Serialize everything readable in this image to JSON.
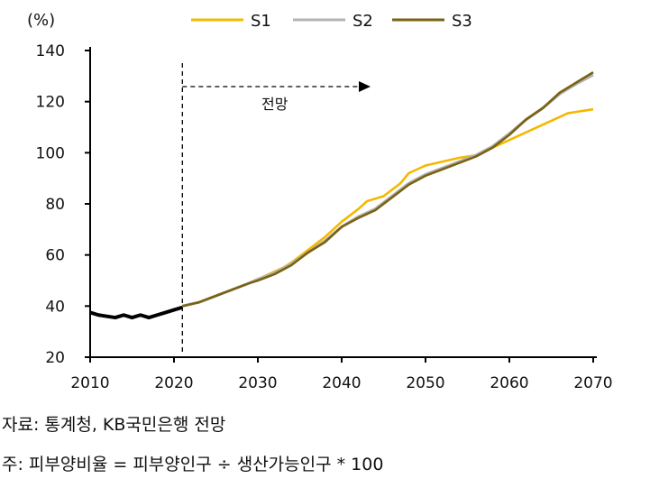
{
  "chart_data": {
    "type": "line",
    "ylabel": "(%)",
    "ylim": [
      20,
      140
    ],
    "xlim": [
      2010,
      2070
    ],
    "yticks": [
      20,
      40,
      60,
      80,
      100,
      120,
      140
    ],
    "xticks": [
      2010,
      2020,
      2030,
      2040,
      2050,
      2060,
      2070
    ],
    "grid": false,
    "legend_position": "top",
    "annotation": {
      "label": "전망",
      "start_year": 2021
    },
    "historical": {
      "color": "#000000",
      "x": [
        2010,
        2011,
        2012,
        2013,
        2014,
        2015,
        2016,
        2017,
        2018,
        2019,
        2020,
        2021
      ],
      "y": [
        37.5,
        36.5,
        36,
        35.5,
        36.5,
        35.5,
        36.5,
        35.5,
        36.5,
        37.5,
        38.5,
        39.5
      ]
    },
    "series": [
      {
        "name": "S1",
        "color": "#F5B800",
        "x": [
          2021,
          2023,
          2025,
          2027,
          2029,
          2031,
          2033,
          2034,
          2036,
          2038,
          2040,
          2042,
          2043,
          2045,
          2047,
          2048,
          2050,
          2052,
          2054,
          2056,
          2058,
          2060,
          2062,
          2064,
          2066,
          2067,
          2068,
          2069,
          2070
        ],
        "y": [
          40,
          41.5,
          44,
          46.5,
          49,
          52,
          55,
          57,
          62,
          67,
          73,
          78,
          81,
          83,
          88,
          92,
          95,
          96.5,
          98,
          99,
          102,
          105,
          108,
          111,
          114,
          115.5,
          116,
          116.5,
          117
        ]
      },
      {
        "name": "S2",
        "color": "#B3B3B3",
        "x": [
          2021,
          2023,
          2025,
          2027,
          2029,
          2030,
          2032,
          2034,
          2036,
          2038,
          2040,
          2042,
          2044,
          2046,
          2048,
          2050,
          2052,
          2054,
          2056,
          2058,
          2060,
          2062,
          2064,
          2066,
          2068,
          2070
        ],
        "y": [
          40,
          41.5,
          44,
          46.5,
          49,
          50.5,
          53,
          56.5,
          61,
          65.5,
          71,
          75,
          78,
          83,
          88,
          91.5,
          94,
          96.5,
          99,
          102.5,
          107.5,
          113,
          117.5,
          123,
          127,
          130.5
        ]
      },
      {
        "name": "S3",
        "color": "#7A6212",
        "x": [
          2021,
          2023,
          2025,
          2027,
          2029,
          2030,
          2032,
          2034,
          2036,
          2038,
          2040,
          2042,
          2044,
          2046,
          2048,
          2050,
          2052,
          2054,
          2056,
          2058,
          2060,
          2062,
          2064,
          2066,
          2068,
          2070
        ],
        "y": [
          40,
          41.5,
          44,
          46.5,
          49,
          50,
          52.5,
          56,
          61,
          65,
          71,
          74.5,
          77.5,
          82.5,
          87.5,
          91,
          93.5,
          96,
          98.5,
          102,
          107,
          113,
          117.5,
          123.5,
          127.5,
          131.5
        ]
      }
    ]
  },
  "notes": {
    "source": "자료: 통계청, KB국민은행 전망",
    "footnote": "주: 피부양비율 = 피부양인구 ÷ 생산가능인구 * 100"
  }
}
